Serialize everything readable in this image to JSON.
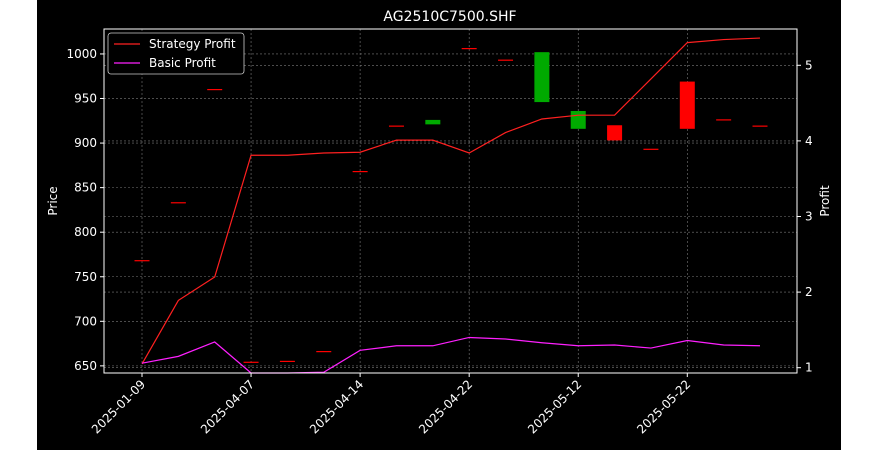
{
  "chart_data": {
    "type": "candlestick+line",
    "title": "AG2510C7500.SHF",
    "xlabel": "",
    "ylabel": "Price",
    "y2label": "Profit",
    "xticks": [
      "2025-01-09",
      "2025-04-07",
      "2025-04-14",
      "2025-04-22",
      "2025-05-12",
      "2025-05-22"
    ],
    "yticks": [
      650,
      700,
      750,
      800,
      850,
      900,
      950,
      1000
    ],
    "y2ticks": [
      1,
      2,
      3,
      4,
      5
    ],
    "ylim": [
      642,
      1028
    ],
    "y2lim": [
      0.93,
      5.48
    ],
    "grid": true,
    "legend_position": "upper-left",
    "colors": {
      "background": "#000000",
      "axes": "#ffffff",
      "grid": "#7a7a7a",
      "up": "#00aa00",
      "down": "#ff0000",
      "strategy": "#ff2020",
      "basic": "#ff20ff"
    },
    "candles": [
      {
        "open": 768,
        "close": 768
      },
      {
        "open": 833,
        "close": 833
      },
      {
        "open": 960,
        "close": 960
      },
      {
        "open": 654,
        "close": 654
      },
      {
        "open": 655,
        "close": 655
      },
      {
        "open": 666,
        "close": 666
      },
      {
        "open": 868,
        "close": 868
      },
      {
        "open": 919,
        "close": 919
      },
      {
        "open": 921,
        "close": 926
      },
      {
        "open": 1006,
        "close": 1006
      },
      {
        "open": 993,
        "close": 993
      },
      {
        "open": 946,
        "close": 1002
      },
      {
        "open": 916,
        "close": 936
      },
      {
        "open": 920,
        "close": 903
      },
      {
        "open": 893,
        "close": 893
      },
      {
        "open": 969,
        "close": 916
      },
      {
        "open": 926,
        "close": 926
      },
      {
        "open": 919,
        "close": 919
      }
    ],
    "series": [
      {
        "name": "Strategy Profit",
        "values": [
          1.05,
          1.89,
          2.2,
          3.81,
          3.81,
          3.84,
          3.85,
          4.01,
          4.01,
          3.84,
          4.11,
          4.29,
          4.34,
          4.34,
          4.82,
          5.3,
          5.34,
          5.36
        ]
      },
      {
        "name": "Basic Profit",
        "values": [
          1.06,
          1.15,
          1.34,
          0.93,
          0.93,
          0.94,
          1.23,
          1.29,
          1.29,
          1.4,
          1.38,
          1.33,
          1.29,
          1.3,
          1.26,
          1.36,
          1.3,
          1.29
        ]
      }
    ]
  }
}
